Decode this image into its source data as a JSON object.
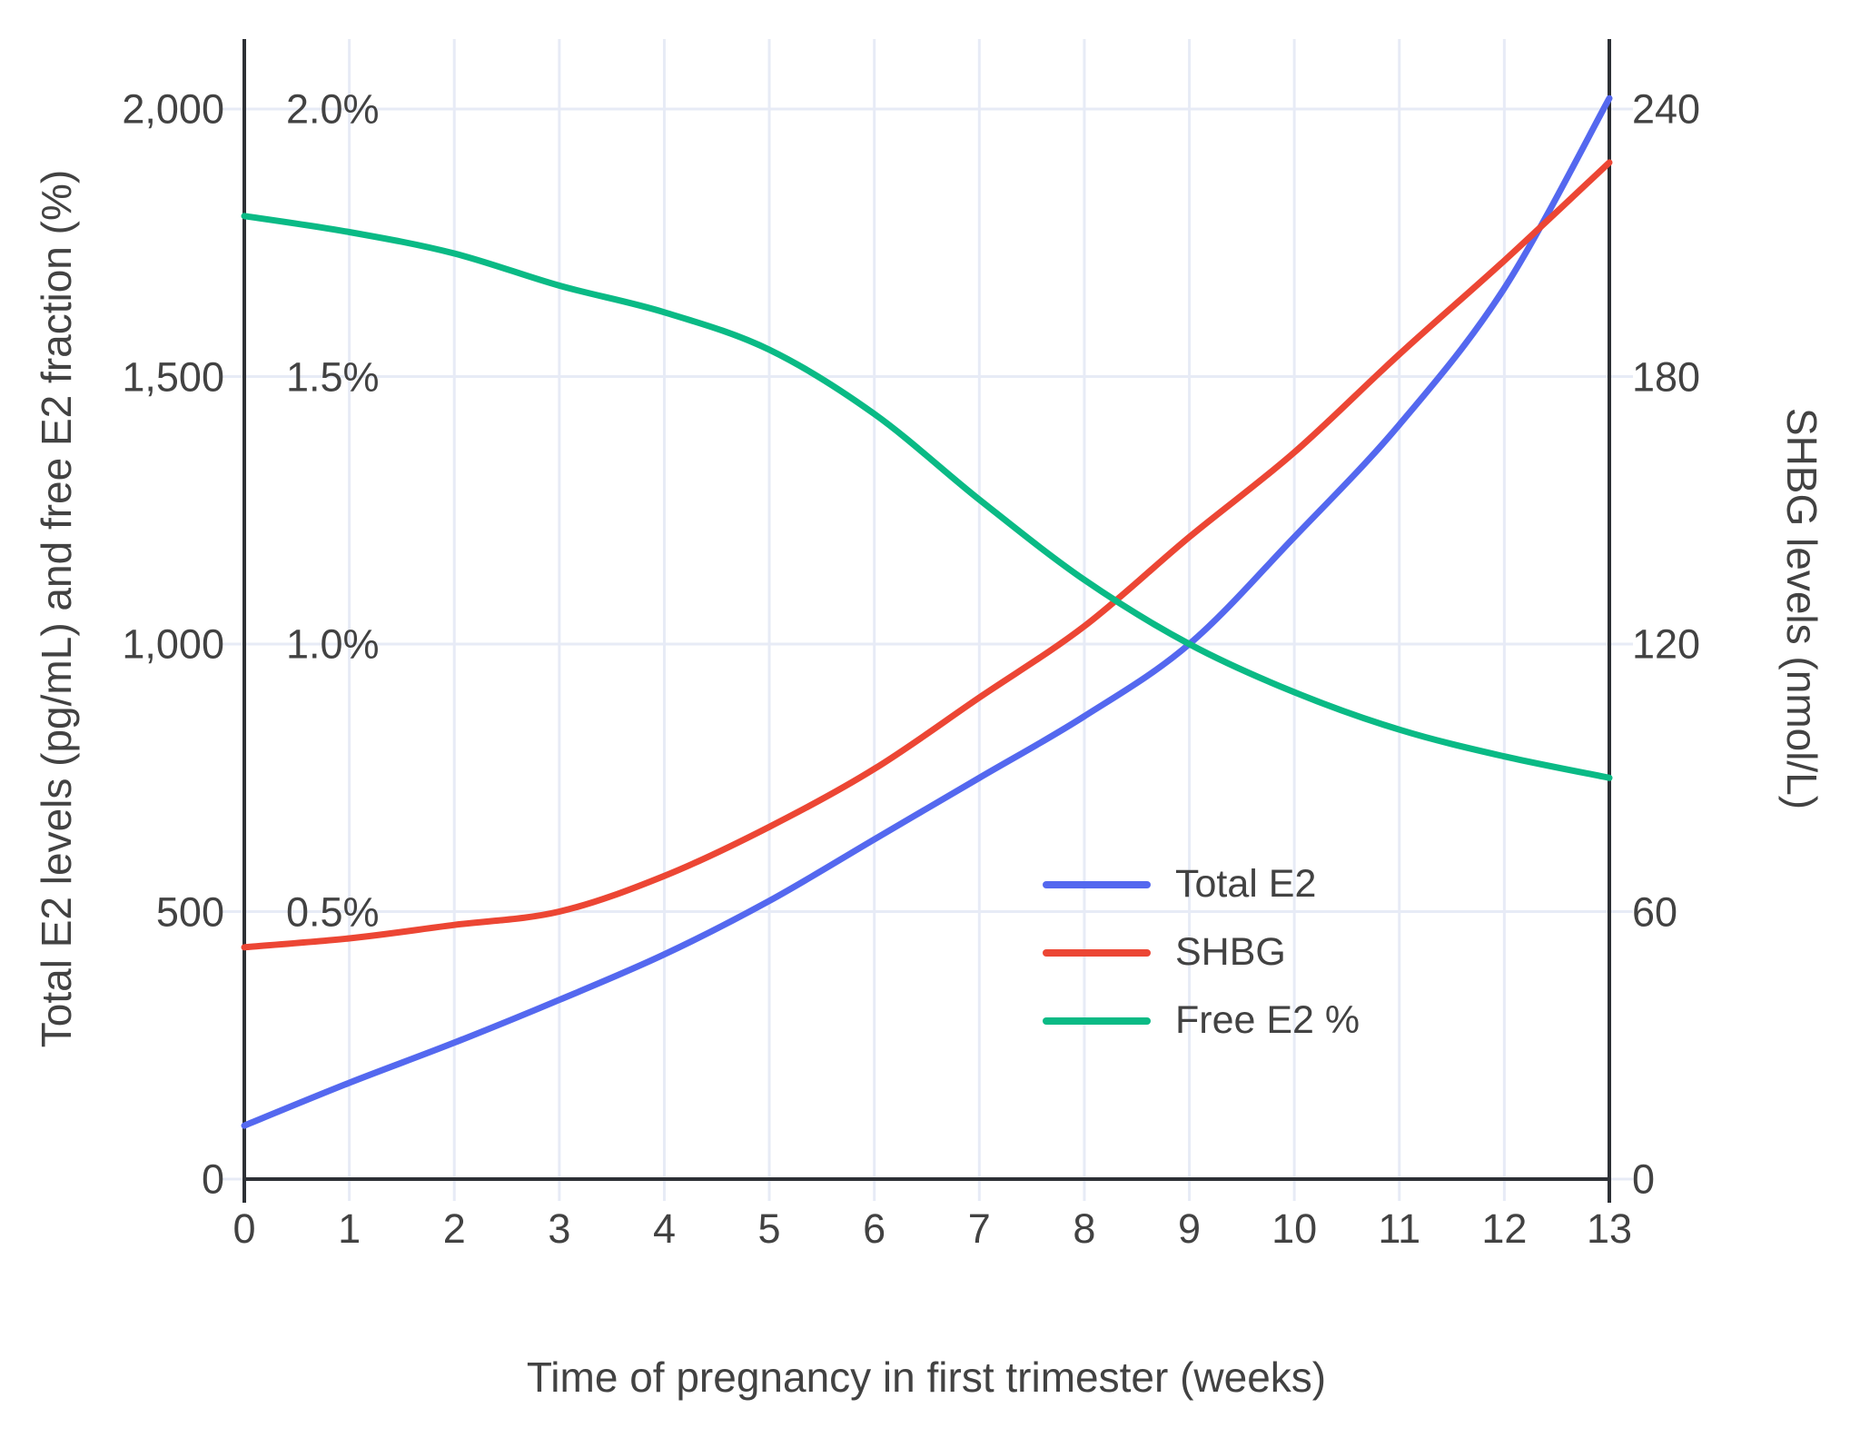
{
  "chart_data": {
    "type": "line",
    "x_label": "Time of pregnancy in first trimester (weeks)",
    "y_left_label": "Total E2 levels (pg/mL) and free E2 fraction (%)",
    "y_right_label": "SHBG levels (nmol/L)",
    "x": [
      0,
      1,
      2,
      3,
      4,
      5,
      6,
      7,
      8,
      9,
      10,
      11,
      12,
      13
    ],
    "x_tick_labels": [
      "0",
      "1",
      "2",
      "3",
      "4",
      "5",
      "6",
      "7",
      "8",
      "9",
      "10",
      "11",
      "12",
      "13"
    ],
    "series": [
      {
        "name": "Total E2",
        "axis": "left",
        "unit": "pg/mL",
        "color": "#5468EF",
        "values": [
          100,
          180,
          255,
          335,
          420,
          520,
          635,
          750,
          865,
          1000,
          1200,
          1410,
          1665,
          2020
        ]
      },
      {
        "name": "SHBG",
        "axis": "right",
        "unit": "nmol/L",
        "color": "#EC4634",
        "values": [
          52,
          54,
          57,
          60,
          68,
          79,
          92,
          108,
          124,
          144,
          163,
          185,
          206,
          228
        ]
      },
      {
        "name": "Free E2 %",
        "axis": "percent",
        "unit": "%",
        "color": "#0ABA85",
        "values": [
          1.8,
          1.77,
          1.73,
          1.67,
          1.62,
          1.55,
          1.43,
          1.27,
          1.12,
          1.0,
          0.91,
          0.84,
          0.79,
          0.75
        ]
      }
    ],
    "left_axis": {
      "tick_labels": [
        "0",
        "500",
        "1,000",
        "1,500",
        "2,000"
      ],
      "tick_values": [
        0,
        500,
        1000,
        1500,
        2000
      ],
      "range": [
        0,
        2130
      ],
      "unit": "pg/mL"
    },
    "percent_axis": {
      "tick_labels": [
        "0.5%",
        "1.0%",
        "1.5%",
        "2.0%"
      ],
      "tick_values_pct": [
        0.5,
        1.0,
        1.5,
        2.0
      ],
      "note": "shares left axis scale: 0.5% aligns with 500 pg/mL"
    },
    "right_axis": {
      "tick_labels": [
        "0",
        "60",
        "120",
        "180",
        "240"
      ],
      "tick_values": [
        0,
        60,
        120,
        180,
        240
      ],
      "range": [
        0,
        255.6
      ],
      "unit": "nmol/L"
    },
    "xlim": [
      0,
      13
    ],
    "grid": true,
    "legend": {
      "position": "middle-right",
      "entries": [
        "Total E2",
        "SHBG",
        "Free E2 %"
      ]
    },
    "styles": {
      "grid_color": "#E7EBF6",
      "axis_line_color": "#2D3035",
      "text_color": "#424242",
      "background": "#FFFFFF"
    }
  }
}
